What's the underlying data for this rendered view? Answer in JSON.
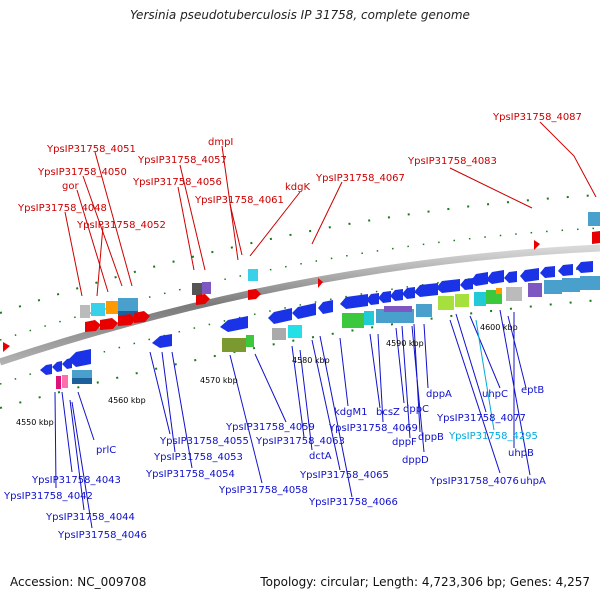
{
  "title": "Yersinia pseudotuberculosis IP 31758, complete genome",
  "footer": {
    "accession": "Accession: NC_009708",
    "topology": "Topology: circular; Length: 4,723,306 bp; Genes: 4,257"
  },
  "colors": {
    "backbone": "#8c8c8c",
    "forward_gene": "#e80000",
    "reverse_gene": "#1a33e6",
    "forward_label": "#cc0000",
    "reverse_label": "#1010cc",
    "highlight_label": "#00aadd",
    "tick": "#1a7a1a"
  },
  "ticks": [
    "4550 kbp",
    "4560 kbp",
    "4570 kbp",
    "4580 kbp",
    "4590 kbp",
    "4600 kbp"
  ],
  "top_labels": [
    "YpsIP31758_4051",
    "YpsIP31758_4050",
    "gor",
    "YpsIP31758_4048",
    "YpsIP31758_4052",
    "YpsIP31758_4057",
    "dmpI",
    "YpsIP31758_4056",
    "YpsIP31758_4061",
    "kdgK",
    "YpsIP31758_4067",
    "YpsIP31758_4083",
    "YpsIP31758_4087"
  ],
  "bottom_labels": [
    "prlC",
    "YpsIP31758_4043",
    "YpsIP31758_4042",
    "YpsIP31758_4044",
    "YpsIP31758_4046",
    "YpsIP31758_4055",
    "YpsIP31758_4053",
    "YpsIP31758_4054",
    "YpsIP31758_4058",
    "YpsIP31758_4059",
    "YpsIP31758_4063",
    "dctA",
    "YpsIP31758_4065",
    "YpsIP31758_4066",
    "kdgM1",
    "bcsZ",
    "YpsIP31758_4069",
    "dppC",
    "dppF",
    "dppB",
    "dppD",
    "dppA",
    "uhpC",
    "eptB",
    "YpsIP31758_4077",
    "YpsIP31758_4295",
    "uhpB",
    "YpsIP31758_4076",
    "uhpA"
  ]
}
